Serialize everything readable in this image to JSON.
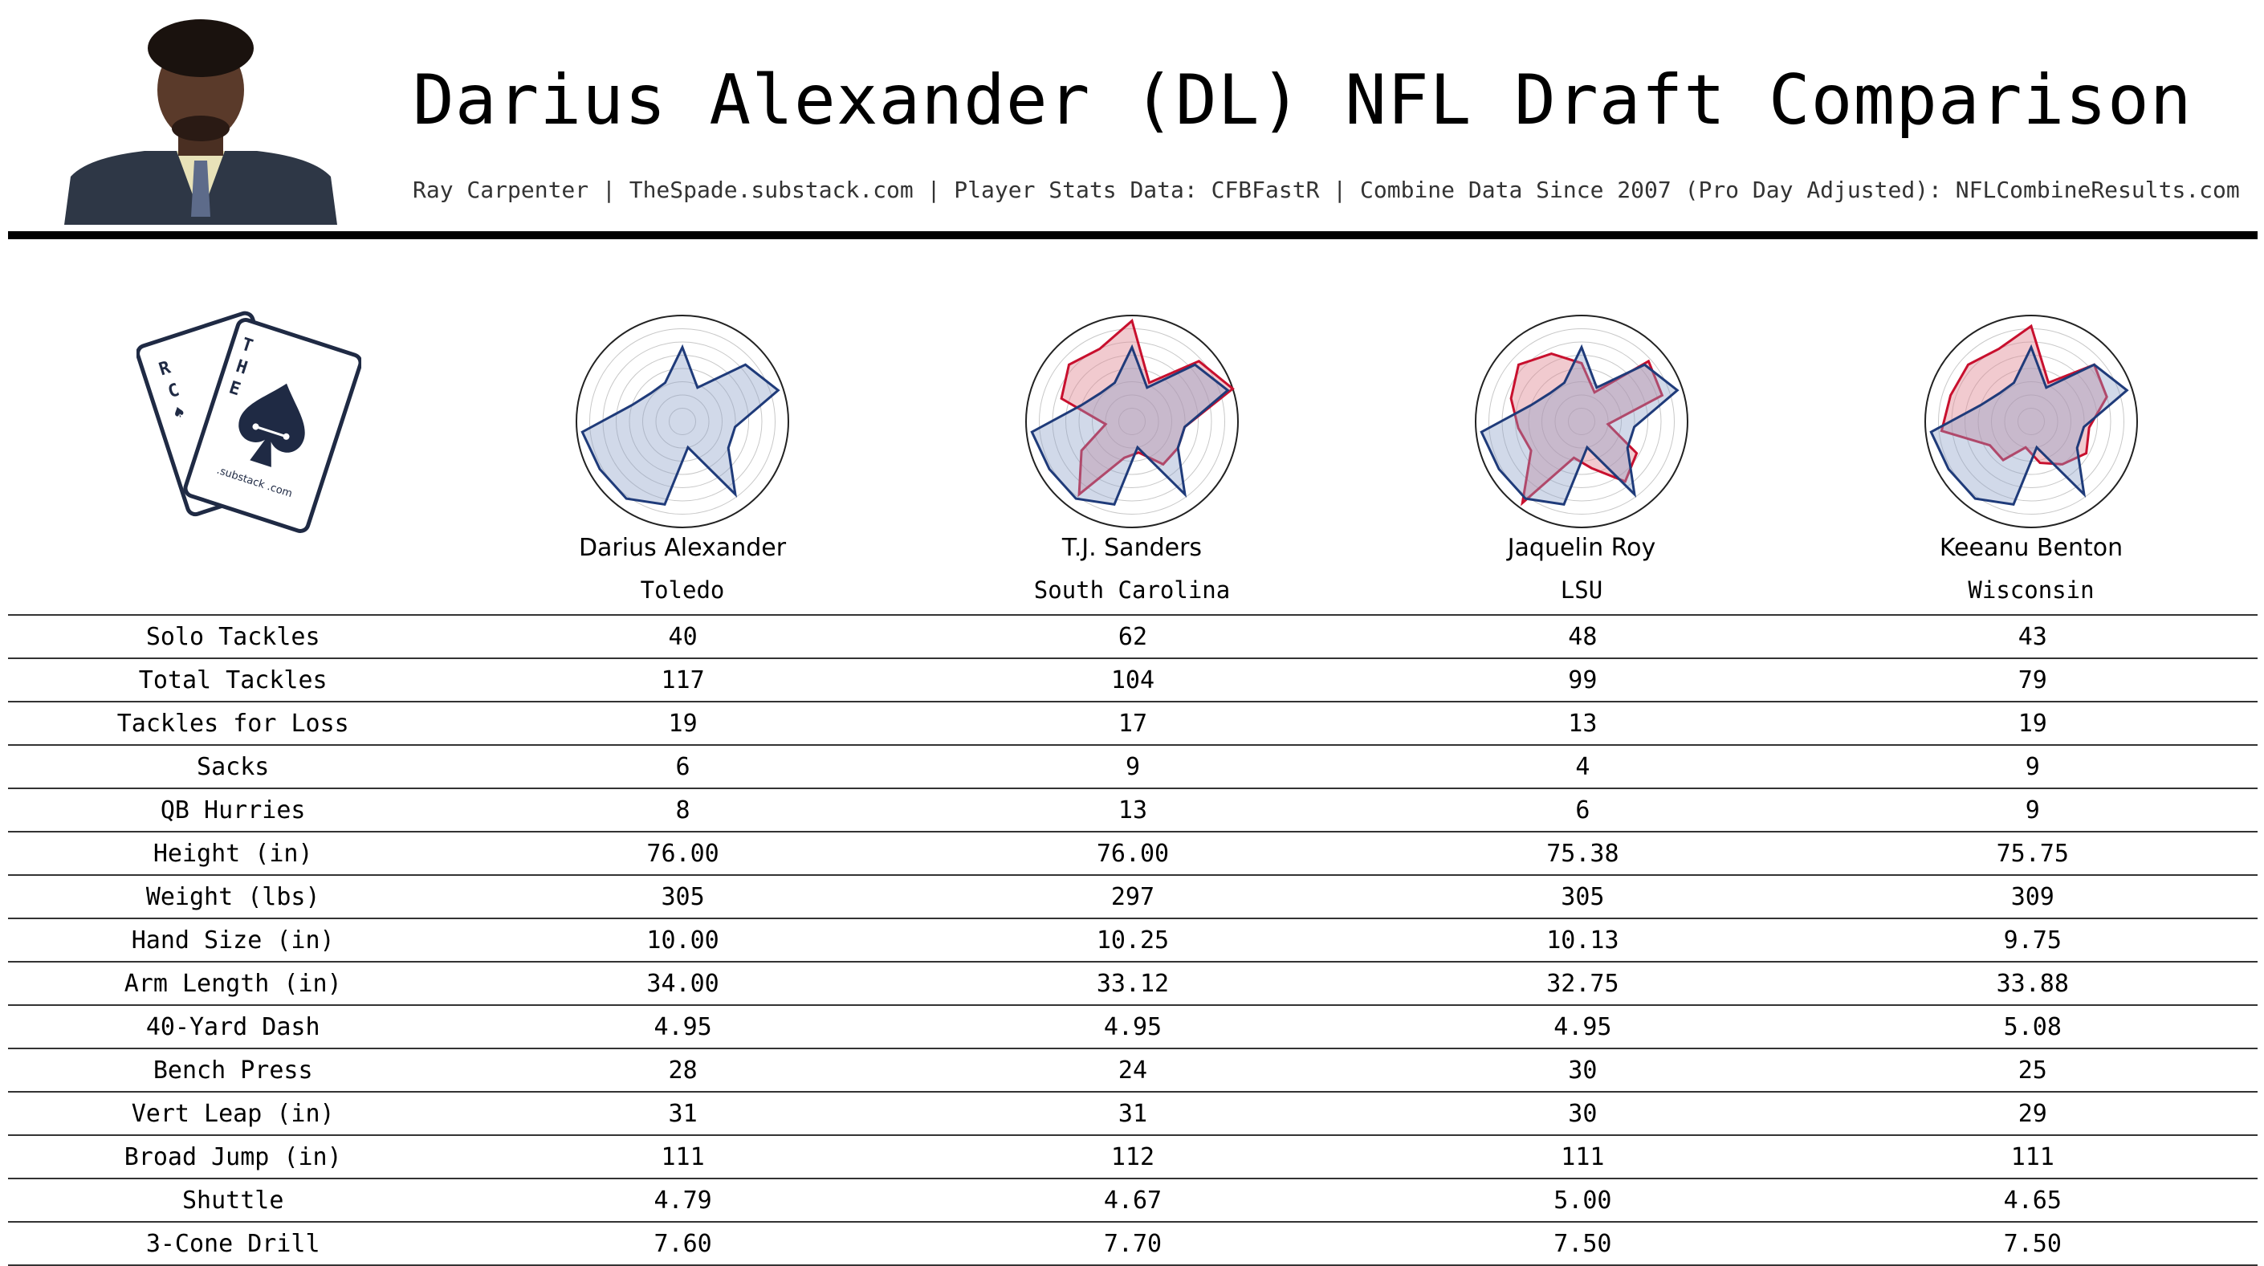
{
  "title": "Darius Alexander (DL) NFL Draft Comparison",
  "subtitle": "Ray Carpenter | TheSpade.substack.com | Player Stats Data: CFBFastR | Combine Data Since 2007 (Pro Day Adjusted): NFLCombineResults.com",
  "logo": {
    "brand_text": "THE SPADE",
    "substack_text": ".substack .com"
  },
  "colors": {
    "primary": "#1f3b7a",
    "comparison": "#c8102e",
    "fill_primary": "#8c9fc7",
    "fill_comparison": "#e08a95"
  },
  "chart_data": {
    "type": "table",
    "players": [
      {
        "name": "Darius Alexander",
        "school": "Toledo"
      },
      {
        "name": "T.J. Sanders",
        "school": "South Carolina"
      },
      {
        "name": "Jaquelin Roy",
        "school": "LSU"
      },
      {
        "name": "Keeanu Benton",
        "school": "Wisconsin"
      }
    ],
    "rows": [
      {
        "label": "Solo Tackles",
        "values": [
          "40",
          "62",
          "48",
          "43"
        ]
      },
      {
        "label": "Total Tackles",
        "values": [
          "117",
          "104",
          "99",
          "79"
        ]
      },
      {
        "label": "Tackles for Loss",
        "values": [
          "19",
          "17",
          "13",
          "19"
        ]
      },
      {
        "label": "Sacks",
        "values": [
          "6",
          "9",
          "4",
          "9"
        ]
      },
      {
        "label": "QB Hurries",
        "values": [
          "8",
          "13",
          "6",
          "9"
        ]
      },
      {
        "label": "Height (in)",
        "values": [
          "76.00",
          "76.00",
          "75.38",
          "75.75"
        ]
      },
      {
        "label": "Weight (lbs)",
        "values": [
          "305",
          "297",
          "305",
          "309"
        ]
      },
      {
        "label": "Hand Size (in)",
        "values": [
          "10.00",
          "10.25",
          "10.13",
          "9.75"
        ]
      },
      {
        "label": "Arm Length (in)",
        "values": [
          "34.00",
          "33.12",
          "32.75",
          "33.88"
        ]
      },
      {
        "label": "40-Yard Dash",
        "values": [
          "4.95",
          "4.95",
          "4.95",
          "5.08"
        ]
      },
      {
        "label": "Bench Press",
        "values": [
          "28",
          "24",
          "30",
          "25"
        ]
      },
      {
        "label": "Vert Leap (in)",
        "values": [
          "31",
          "31",
          "30",
          "29"
        ]
      },
      {
        "label": "Broad Jump (in)",
        "values": [
          "111",
          "112",
          "111",
          "111"
        ]
      },
      {
        "label": "Shuttle",
        "values": [
          "4.79",
          "4.67",
          "5.00",
          "4.65"
        ]
      },
      {
        "label": "3-Cone Drill",
        "values": [
          "7.60",
          "7.70",
          "7.50",
          "7.50"
        ]
      }
    ],
    "radar_profiles": [
      [
        0.7,
        0.35,
        0.8,
        0.95,
        0.5,
        0.5,
        0.85,
        0.25,
        0.8,
        0.9,
        0.9,
        0.95,
        0.5,
        0.4,
        0.4
      ],
      [
        0.95,
        0.4,
        0.85,
        1.0,
        0.5,
        0.5,
        0.5,
        0.3,
        0.35,
        0.85,
        0.55,
        0.25,
        0.7,
        0.8,
        0.75
      ],
      [
        0.55,
        0.3,
        0.85,
        0.8,
        0.25,
        0.6,
        0.7,
        0.45,
        0.35,
        0.95,
        0.55,
        0.6,
        0.7,
        0.8,
        0.7
      ],
      [
        0.9,
        0.4,
        0.8,
        0.75,
        0.55,
        0.6,
        0.5,
        0.4,
        0.25,
        0.45,
        0.45,
        0.85,
        0.8,
        0.8,
        0.75
      ]
    ]
  }
}
